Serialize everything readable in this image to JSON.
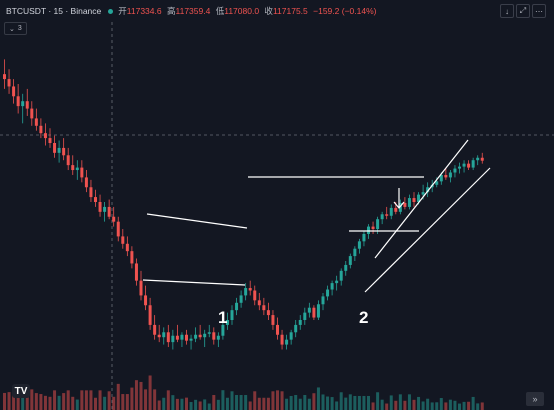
{
  "header": {
    "symbol_label": "BTCUSDT · 15 · Binance",
    "ohlc": [
      {
        "label": "开",
        "value": "117334.6"
      },
      {
        "label": "高",
        "value": "117359.4"
      },
      {
        "label": "低",
        "value": "117080.0"
      },
      {
        "label": "收",
        "value": "117175.5"
      }
    ],
    "change": "−159.2 (−0.14%)",
    "buttons": {
      "down_icon": "↓",
      "expand_icon": "⤢",
      "dots_icon": "⋯"
    }
  },
  "indicator_badge": {
    "chevron_icon": "⌄",
    "count": "3"
  },
  "pattern_labels": [
    "1",
    "2"
  ],
  "footer": {
    "logo_text": "TV",
    "scroll_icon": "»"
  },
  "colors": {
    "background": "#131722",
    "up": "#26a69a",
    "down": "#ef5350",
    "annotation": "#ffffff"
  },
  "chart_data": {
    "type": "candlestick",
    "symbol": "BTCUSDT",
    "interval": "15",
    "exchange": "Binance",
    "scale": [
      116800,
      117400
    ],
    "candles": [
      [
        117300,
        117330,
        117270,
        117290
      ],
      [
        117290,
        117310,
        117260,
        117275
      ],
      [
        117275,
        117290,
        117240,
        117255
      ],
      [
        117255,
        117280,
        117220,
        117235
      ],
      [
        117235,
        117260,
        117200,
        117245
      ],
      [
        117245,
        117270,
        117215,
        117230
      ],
      [
        117230,
        117245,
        117195,
        117210
      ],
      [
        117210,
        117230,
        117185,
        117195
      ],
      [
        117195,
        117210,
        117170,
        117180
      ],
      [
        117180,
        117200,
        117155,
        117170
      ],
      [
        117170,
        117190,
        117150,
        117160
      ],
      [
        117160,
        117175,
        117130,
        117140
      ],
      [
        117140,
        117165,
        117120,
        117150
      ],
      [
        117150,
        117170,
        117125,
        117135
      ],
      [
        117135,
        117150,
        117105,
        117115
      ],
      [
        117115,
        117135,
        117095,
        117105
      ],
      [
        117105,
        117125,
        117085,
        117110
      ],
      [
        117110,
        117125,
        117080,
        117090
      ],
      [
        117090,
        117105,
        117060,
        117070
      ],
      [
        117070,
        117085,
        117040,
        117050
      ],
      [
        117050,
        117065,
        117030,
        117040
      ],
      [
        117040,
        117055,
        117010,
        117020
      ],
      [
        117020,
        117040,
        117000,
        117030
      ],
      [
        117030,
        117045,
        117005,
        117010
      ],
      [
        117010,
        117030,
        116990,
        117000
      ],
      [
        117000,
        117010,
        116960,
        116970
      ],
      [
        116970,
        116985,
        116945,
        116955
      ],
      [
        116955,
        116970,
        116930,
        116940
      ],
      [
        116940,
        116950,
        116905,
        116915
      ],
      [
        116915,
        116925,
        116870,
        116880
      ],
      [
        116880,
        116900,
        116840,
        116850
      ],
      [
        116850,
        116870,
        116820,
        116830
      ],
      [
        116830,
        116845,
        116780,
        116790
      ],
      [
        116790,
        116810,
        116760,
        116770
      ],
      [
        116770,
        116790,
        116755,
        116765
      ],
      [
        116765,
        116785,
        116750,
        116775
      ],
      [
        116775,
        116790,
        116745,
        116755
      ],
      [
        116755,
        116780,
        116740,
        116768
      ],
      [
        116768,
        116790,
        116755,
        116760
      ],
      [
        116760,
        116775,
        116745,
        116770
      ],
      [
        116770,
        116780,
        116750,
        116758
      ],
      [
        116758,
        116770,
        116740,
        116762
      ],
      [
        116762,
        116785,
        116755,
        116770
      ],
      [
        116770,
        116790,
        116760,
        116765
      ],
      [
        116765,
        116780,
        116745,
        116772
      ],
      [
        116772,
        116790,
        116765,
        116775
      ],
      [
        116775,
        116785,
        116750,
        116760
      ],
      [
        116760,
        116775,
        116745,
        116768
      ],
      [
        116768,
        116800,
        116760,
        116790
      ],
      [
        116790,
        116815,
        116780,
        116800
      ],
      [
        116800,
        116830,
        116790,
        116820
      ],
      [
        116820,
        116845,
        116810,
        116835
      ],
      [
        116835,
        116860,
        116825,
        116850
      ],
      [
        116850,
        116875,
        116840,
        116865
      ],
      [
        116865,
        116880,
        116850,
        116860
      ],
      [
        116860,
        116870,
        116830,
        116840
      ],
      [
        116840,
        116855,
        116820,
        116830
      ],
      [
        116830,
        116845,
        116810,
        116820
      ],
      [
        116820,
        116835,
        116800,
        116810
      ],
      [
        116810,
        116820,
        116780,
        116790
      ],
      [
        116790,
        116805,
        116760,
        116770
      ],
      [
        116770,
        116780,
        116740,
        116750
      ],
      [
        116750,
        116770,
        116740,
        116760
      ],
      [
        116760,
        116780,
        116750,
        116775
      ],
      [
        116775,
        116800,
        116765,
        116790
      ],
      [
        116790,
        116810,
        116780,
        116800
      ],
      [
        116800,
        116825,
        116790,
        116815
      ],
      [
        116815,
        116835,
        116805,
        116825
      ],
      [
        116825,
        116830,
        116800,
        116805
      ],
      [
        116805,
        116840,
        116800,
        116832
      ],
      [
        116832,
        116855,
        116820,
        116848
      ],
      [
        116848,
        116870,
        116840,
        116862
      ],
      [
        116862,
        116880,
        116850,
        116875
      ],
      [
        116875,
        116890,
        116860,
        116880
      ],
      [
        116880,
        116905,
        116870,
        116900
      ],
      [
        116900,
        116920,
        116890,
        116912
      ],
      [
        116912,
        116935,
        116905,
        116930
      ],
      [
        116930,
        116950,
        116920,
        116945
      ],
      [
        116945,
        116965,
        116935,
        116960
      ],
      [
        116960,
        116980,
        116950,
        116975
      ],
      [
        116975,
        116995,
        116965,
        116990
      ],
      [
        116990,
        117000,
        116975,
        116985
      ],
      [
        116985,
        117010,
        116975,
        117005
      ],
      [
        117005,
        117020,
        116995,
        117015
      ],
      [
        117015,
        117030,
        117005,
        117012
      ],
      [
        117012,
        117035,
        117005,
        117028
      ],
      [
        117028,
        117040,
        117015,
        117020
      ],
      [
        117020,
        117045,
        117015,
        117038
      ],
      [
        117038,
        117050,
        117025,
        117030
      ],
      [
        117030,
        117055,
        117025,
        117048
      ],
      [
        117048,
        117060,
        117030,
        117040
      ],
      [
        117040,
        117060,
        117035,
        117055
      ],
      [
        117055,
        117075,
        117045,
        117060
      ],
      [
        117060,
        117080,
        117050,
        117070
      ],
      [
        117070,
        117085,
        117060,
        117075
      ],
      [
        117075,
        117090,
        117070,
        117082
      ],
      [
        117082,
        117100,
        117075,
        117095
      ],
      [
        117095,
        117110,
        117085,
        117090
      ],
      [
        117090,
        117105,
        117080,
        117100
      ],
      [
        117100,
        117115,
        117090,
        117108
      ],
      [
        117108,
        117120,
        117098,
        117112
      ],
      [
        117112,
        117125,
        117100,
        117118
      ],
      [
        117118,
        117125,
        117105,
        117110
      ],
      [
        117110,
        117130,
        117105,
        117125
      ],
      [
        117125,
        117135,
        117115,
        117130
      ],
      [
        117130,
        117140,
        117118,
        117124
      ]
    ]
  }
}
